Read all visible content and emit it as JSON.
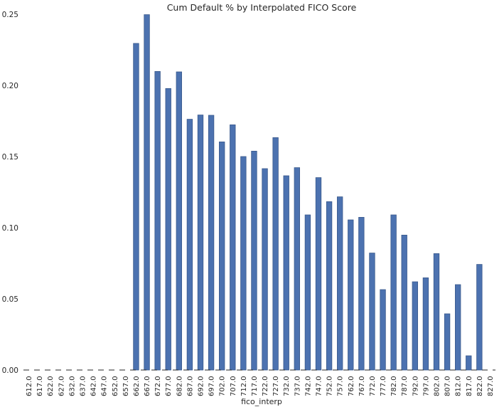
{
  "chart_data": {
    "type": "bar",
    "title": "Cum Default % by Interpolated FICO Score",
    "xlabel": "fico_interp",
    "ylabel": "",
    "ylim": [
      0,
      0.25
    ],
    "yticks": [
      "0.00",
      "0.05",
      "0.10",
      "0.15",
      "0.20",
      "0.25"
    ],
    "grid": false,
    "bar_color": "#4c72b0",
    "categories": [
      "612.0",
      "617.0",
      "622.0",
      "627.0",
      "632.0",
      "637.0",
      "642.0",
      "647.0",
      "652.0",
      "657.0",
      "662.0",
      "667.0",
      "672.0",
      "677.0",
      "682.0",
      "687.0",
      "692.0",
      "697.0",
      "702.0",
      "707.0",
      "712.0",
      "717.0",
      "722.0",
      "727.0",
      "732.0",
      "737.0",
      "742.0",
      "747.0",
      "752.0",
      "757.0",
      "762.0",
      "767.0",
      "772.0",
      "777.0",
      "782.0",
      "787.0",
      "792.0",
      "797.0",
      "802.0",
      "807.0",
      "812.0",
      "817.0",
      "822.0",
      "827.0"
    ],
    "values": [
      0,
      0,
      0,
      0,
      0,
      0,
      0,
      0,
      0,
      0,
      0.2295,
      0.2497,
      0.2098,
      0.1978,
      0.2095,
      0.1762,
      0.1792,
      0.179,
      0.1603,
      0.1723,
      0.15,
      0.1538,
      0.1415,
      0.1633,
      0.1365,
      0.1422,
      0.109,
      0.1352,
      0.1183,
      0.1217,
      0.1055,
      0.1073,
      0.0822,
      0.0565,
      0.109,
      0.0948,
      0.062,
      0.0648,
      0.0818,
      0.0395,
      0.06,
      0.01,
      0.0742,
      0
    ]
  }
}
